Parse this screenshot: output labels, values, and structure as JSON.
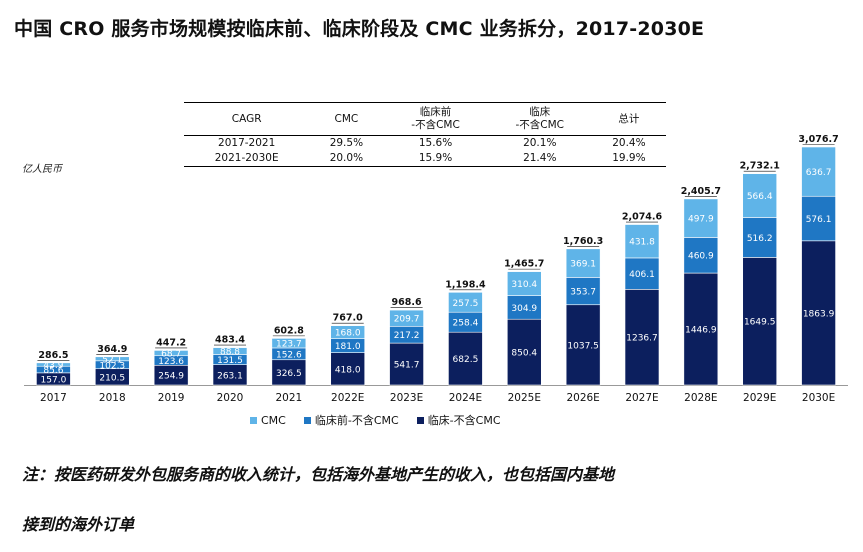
{
  "title": "中国 CRO 服务市场规模按临床前、临床阶段及 CMC 业务拆分，2017-2030E",
  "unit_label": "亿人民币",
  "cagr_table": {
    "headers": [
      "CAGR",
      "CMC",
      "临床前\n-不含CMC",
      "临床\n-不含CMC",
      "总计"
    ],
    "rows": [
      [
        "2017-2021",
        "29.5%",
        "15.6%",
        "20.1%",
        "20.4%"
      ],
      [
        "2021-2030E",
        "20.0%",
        "15.9%",
        "21.4%",
        "19.9%"
      ]
    ]
  },
  "note": {
    "line1": "注：按医药研发外包服务商的收入统计，包括海外基地产生的收入，也包括国内基地",
    "line2": "接到的海外订单"
  },
  "colors": {
    "cmc": "#5fb4e8",
    "preclinical": "#1f77c4",
    "clinical": "#0c1f5e"
  },
  "chart_data": {
    "type": "bar",
    "stacked": true,
    "categories": [
      "2017",
      "2018",
      "2019",
      "2020",
      "2021",
      "2022E",
      "2023E",
      "2024E",
      "2025E",
      "2026E",
      "2027E",
      "2028E",
      "2029E",
      "2030E"
    ],
    "series": [
      {
        "name": "临床-不含CMC",
        "values": [
          157.0,
          210.5,
          254.9,
          263.1,
          326.5,
          418.0,
          541.7,
          682.5,
          850.4,
          1037.5,
          1236.7,
          1446.9,
          1649.5,
          1863.9
        ]
      },
      {
        "name": "临床前-不含CMC",
        "values": [
          85.6,
          102.3,
          123.6,
          131.5,
          152.6,
          181.0,
          217.2,
          258.4,
          304.9,
          353.7,
          406.1,
          460.9,
          516.2,
          576.1
        ]
      },
      {
        "name": "CMC",
        "values": [
          43.9,
          52.1,
          68.7,
          88.8,
          123.7,
          168.0,
          209.7,
          257.5,
          310.4,
          369.1,
          431.8,
          497.9,
          566.4,
          636.7
        ]
      }
    ],
    "totals": [
      "286.5",
      "364.9",
      "447.2",
      "483.4",
      "602.8",
      "767.0",
      "968.6",
      "1,198.4",
      "1,465.7",
      "1,760.3",
      "2,074.6",
      "2,405.7",
      "2,732.1",
      "3,076.7"
    ],
    "legend": [
      "CMC",
      "临床前-不含CMC",
      "临床-不含CMC"
    ],
    "ylim": [
      0,
      3100
    ],
    "grid": false,
    "legend_position": "bottom"
  }
}
